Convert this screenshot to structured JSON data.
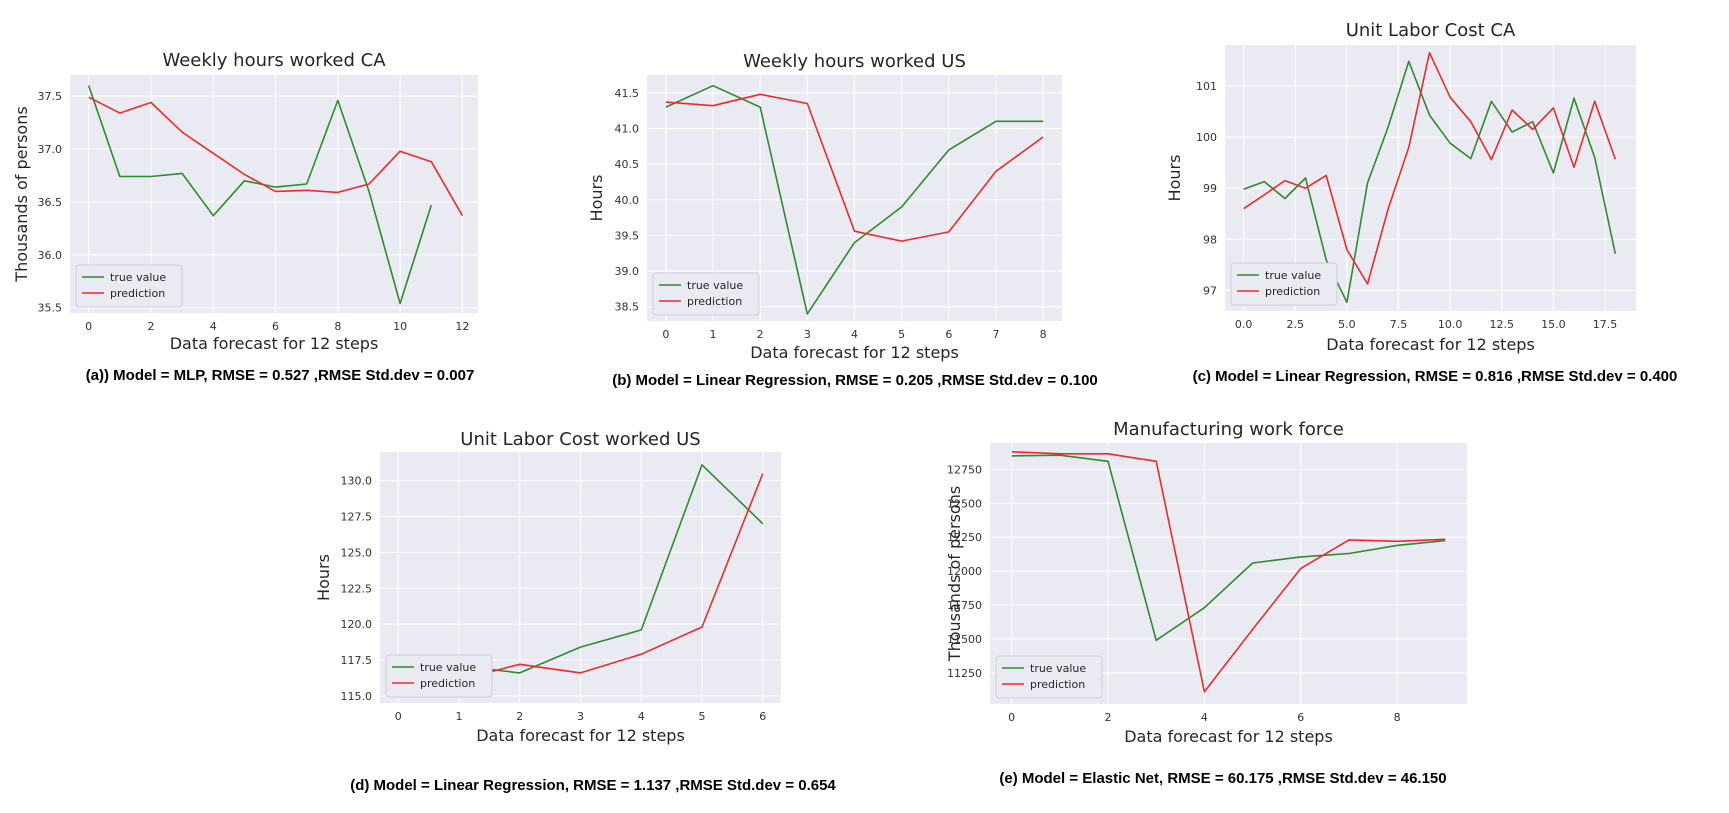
{
  "colors": {
    "true_value": "#2e8b2e",
    "prediction": "#ee2a2a",
    "panel_bg": "#eaeaf2",
    "grid": "#ffffff"
  },
  "chart_data": [
    {
      "type": "line",
      "title": "Weekly hours worked CA",
      "xlabel": "Data forecast for 12 steps",
      "ylabel": "Thousands of persons",
      "caption": "(a)) Model = MLP, RMSE = 0.527 ,RMSE Std.dev = 0.007",
      "xlim": [
        -0.6,
        12.5
      ],
      "ylim": [
        35.45,
        37.7
      ],
      "xticks": [
        0,
        2,
        4,
        6,
        8,
        10,
        12
      ],
      "xtick_labels": [
        "0",
        "2",
        "4",
        "6",
        "8",
        "10",
        "12"
      ],
      "yticks": [
        35.5,
        36.0,
        36.5,
        37.0,
        37.5
      ],
      "ytick_labels": [
        "35.5",
        "36.0",
        "36.5",
        "37.0",
        "37.5"
      ],
      "legend": "lower-left",
      "grid": true,
      "series": [
        {
          "name": "true value",
          "color_key": "true_value",
          "x": [
            0,
            1,
            2,
            3,
            4,
            5,
            6,
            7,
            8,
            9,
            10,
            11
          ],
          "y": [
            37.6,
            36.74,
            36.74,
            36.77,
            36.37,
            36.7,
            36.64,
            36.67,
            37.46,
            36.6,
            35.54,
            36.47
          ]
        },
        {
          "name": "prediction",
          "color_key": "prediction",
          "x": [
            0,
            1,
            2,
            3,
            4,
            5,
            6,
            7,
            8,
            9,
            10,
            11,
            12
          ],
          "y": [
            37.49,
            37.34,
            37.44,
            37.16,
            36.96,
            36.76,
            36.6,
            36.61,
            36.59,
            36.67,
            36.98,
            36.88,
            36.37
          ]
        }
      ]
    },
    {
      "type": "line",
      "title": "Weekly hours worked US",
      "xlabel": "Data forecast for 12 steps",
      "ylabel": "Hours",
      "caption": "(b) Model = Linear Regression, RMSE = 0.205 ,RMSE Std.dev = 0.100",
      "xlim": [
        -0.4,
        8.4
      ],
      "ylim": [
        38.3,
        41.75
      ],
      "xticks": [
        0,
        1,
        2,
        3,
        4,
        5,
        6,
        7,
        8
      ],
      "xtick_labels": [
        "0",
        "1",
        "2",
        "3",
        "4",
        "5",
        "6",
        "7",
        "8"
      ],
      "yticks": [
        38.5,
        39.0,
        39.5,
        40.0,
        40.5,
        41.0,
        41.5
      ],
      "ytick_labels": [
        "38.5",
        "39.0",
        "39.5",
        "40.0",
        "40.5",
        "41.0",
        "41.5"
      ],
      "legend": "lower-left",
      "grid": true,
      "series": [
        {
          "name": "true value",
          "color_key": "true_value",
          "x": [
            0,
            1,
            2,
            3,
            4,
            5,
            6,
            7,
            8
          ],
          "y": [
            41.3,
            41.6,
            41.3,
            38.4,
            39.4,
            39.9,
            40.7,
            41.1,
            41.1
          ]
        },
        {
          "name": "prediction",
          "color_key": "prediction",
          "x": [
            0,
            1,
            2,
            3,
            4,
            5,
            6,
            7,
            8
          ],
          "y": [
            41.37,
            41.32,
            41.48,
            41.35,
            39.56,
            39.42,
            39.55,
            40.4,
            40.88
          ]
        }
      ]
    },
    {
      "type": "line",
      "title": "Unit Labor Cost CA",
      "xlabel": "Data forecast for 12 steps",
      "ylabel": "Hours",
      "caption": "(c) Model = Linear Regression, RMSE = 0.816 ,RMSE Std.dev = 0.400",
      "xlim": [
        -0.9,
        19.0
      ],
      "ylim": [
        96.6,
        101.8
      ],
      "xticks": [
        0,
        2.5,
        5,
        7.5,
        10,
        12.5,
        15,
        17.5
      ],
      "xtick_labels": [
        "0.0",
        "2.5",
        "5.0",
        "7.5",
        "10.0",
        "12.5",
        "15.0",
        "17.5"
      ],
      "yticks": [
        97,
        98,
        99,
        100,
        101
      ],
      "ytick_labels": [
        "97",
        "98",
        "99",
        "100",
        "101"
      ],
      "legend": "lower-left",
      "grid": true,
      "series": [
        {
          "name": "true value",
          "color_key": "true_value",
          "x": [
            0,
            1,
            2,
            3,
            4,
            5,
            6,
            7,
            8,
            9,
            10,
            11,
            12,
            13,
            14,
            15,
            16,
            17,
            18
          ],
          "y": [
            98.98,
            99.13,
            98.8,
            99.2,
            97.6,
            96.77,
            99.1,
            100.2,
            101.48,
            100.43,
            99.88,
            99.58,
            100.7,
            100.1,
            100.3,
            99.3,
            100.76,
            99.6,
            97.72
          ]
        },
        {
          "name": "prediction",
          "color_key": "prediction",
          "x": [
            0,
            1,
            2,
            3,
            4,
            5,
            6,
            7,
            8,
            9,
            10,
            11,
            12,
            13,
            14,
            15,
            16,
            17,
            18
          ],
          "y": [
            98.6,
            98.87,
            99.15,
            99.0,
            99.25,
            97.8,
            97.13,
            98.6,
            99.8,
            101.65,
            100.78,
            100.3,
            99.56,
            100.53,
            100.15,
            100.57,
            99.41,
            100.7,
            99.57
          ]
        }
      ]
    },
    {
      "type": "line",
      "title": "Unit Labor Cost worked US",
      "xlabel": "Data forecast for 12 steps",
      "ylabel": "Hours",
      "caption": "(d) Model = Linear Regression, RMSE = 1.137 ,RMSE Std.dev = 0.654",
      "xlim": [
        -0.3,
        6.3
      ],
      "ylim": [
        114.5,
        132.0
      ],
      "xticks": [
        0,
        1,
        2,
        3,
        4,
        5,
        6
      ],
      "xtick_labels": [
        "0",
        "1",
        "2",
        "3",
        "4",
        "5",
        "6"
      ],
      "yticks": [
        115.0,
        117.5,
        120.0,
        122.5,
        125.0,
        127.5,
        130.0
      ],
      "ytick_labels": [
        "115.0",
        "117.5",
        "120.0",
        "122.5",
        "125.0",
        "127.5",
        "130.0"
      ],
      "legend": "lower-left",
      "grid": true,
      "series": [
        {
          "name": "true value",
          "color_key": "true_value",
          "x": [
            0,
            1,
            2,
            3,
            4,
            5,
            6
          ],
          "y": [
            116.2,
            117.1,
            116.6,
            118.4,
            119.6,
            131.1,
            127.0
          ]
        },
        {
          "name": "prediction",
          "color_key": "prediction",
          "x": [
            0,
            1,
            2,
            3,
            4,
            5,
            6
          ],
          "y": [
            115.0,
            116.1,
            117.2,
            116.6,
            117.9,
            119.8,
            130.5
          ]
        }
      ]
    },
    {
      "type": "line",
      "title": "Manufacturing work force",
      "xlabel": "Data forecast for 12 steps",
      "ylabel": "Thousands of persons",
      "caption": "(e) Model = Elastic Net, RMSE = 60.175 ,RMSE Std.dev = 46.150",
      "xlim": [
        -0.45,
        9.45
      ],
      "ylim": [
        11020,
        12945
      ],
      "xticks": [
        0,
        2,
        4,
        6,
        8
      ],
      "xtick_labels": [
        "0",
        "2",
        "4",
        "6",
        "8"
      ],
      "yticks": [
        11250,
        11500,
        11750,
        12000,
        12250,
        12500,
        12750
      ],
      "ytick_labels": [
        "11250",
        "11500",
        "11750",
        "12000",
        "12250",
        "12500",
        "12750"
      ],
      "legend": "lower-left",
      "grid": true,
      "series": [
        {
          "name": "true value",
          "color_key": "true_value",
          "x": [
            0,
            1,
            2,
            3,
            4,
            5,
            6,
            7,
            8,
            9
          ],
          "y": [
            12850,
            12855,
            12810,
            11490,
            11730,
            12060,
            12105,
            12130,
            12190,
            12225
          ]
        },
        {
          "name": "prediction",
          "color_key": "prediction",
          "x": [
            0,
            1,
            2,
            3,
            4,
            5,
            6,
            7,
            8,
            9
          ],
          "y": [
            12880,
            12865,
            12865,
            12810,
            11110,
            11570,
            12020,
            12230,
            12220,
            12235
          ]
        }
      ]
    }
  ]
}
